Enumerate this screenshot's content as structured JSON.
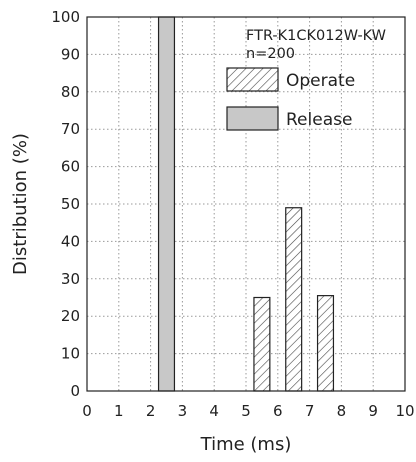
{
  "chart_data": {
    "type": "bar",
    "annotations": [
      "FTR-K1CK012W-KW",
      "n=200"
    ],
    "xlabel": "Time (ms)",
    "ylabel": "Distribution (%)",
    "xlim": [
      0,
      10
    ],
    "ylim": [
      0,
      100
    ],
    "x_ticks": [
      0,
      1,
      2,
      3,
      4,
      5,
      6,
      7,
      8,
      9,
      10
    ],
    "y_ticks": [
      0,
      10,
      20,
      30,
      40,
      50,
      60,
      70,
      80,
      90,
      100
    ],
    "grid": true,
    "legend_position": "top-right",
    "series": [
      {
        "name": "Operate",
        "pattern": "hatched",
        "bars": [
          {
            "x_start": 5.25,
            "x_end": 5.75,
            "value": 25
          },
          {
            "x_start": 6.25,
            "x_end": 6.75,
            "value": 49
          },
          {
            "x_start": 7.25,
            "x_end": 7.75,
            "value": 25.5
          }
        ]
      },
      {
        "name": "Release",
        "color": "#c8c8c8",
        "bars": [
          {
            "x_start": 2.25,
            "x_end": 2.75,
            "value": 100
          }
        ]
      }
    ]
  }
}
